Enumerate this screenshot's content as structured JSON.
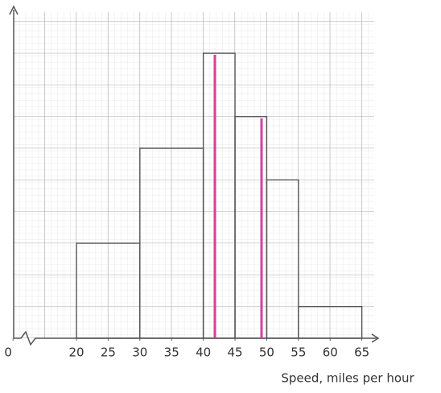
{
  "chart_data": {
    "type": "histogram",
    "x_label": "Speed, miles per hour",
    "bins": [
      20,
      30,
      40,
      45,
      50,
      55,
      65
    ],
    "counts": [
      3,
      6,
      9,
      7,
      5,
      1
    ],
    "color": "#555555",
    "xlim": [
      10,
      67
    ],
    "xticks": [
      {
        "value": 10,
        "label": "0"
      },
      20,
      25,
      30,
      35,
      40,
      45,
      50,
      55,
      60,
      65
    ],
    "ylim": [
      0,
      10.3
    ]
  }
}
